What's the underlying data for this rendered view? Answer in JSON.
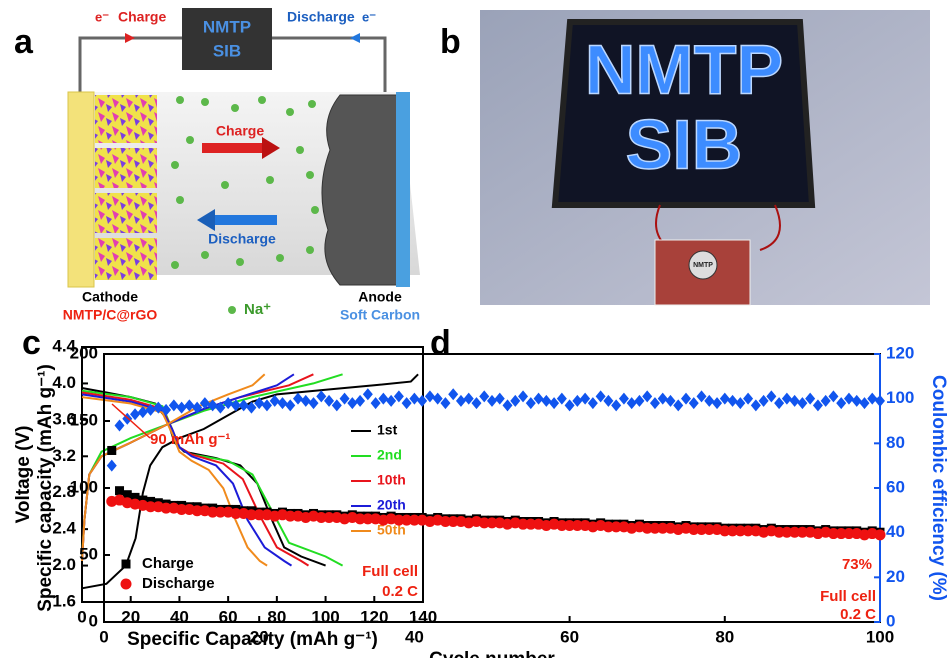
{
  "panel_a": {
    "label": "a",
    "electron_left": "e⁻",
    "charge_wire": "Charge",
    "device": [
      "NMTP",
      "SIB"
    ],
    "discharge_wire": "Discharge",
    "electron_right": "e⁻",
    "arrow_charge": "Charge",
    "arrow_discharge": "Discharge",
    "cathode": "Cathode",
    "cathode_material": "NMTP/C@rGO",
    "ion": "Na⁺",
    "anode": "Anode",
    "anode_material": "Soft Carbon"
  },
  "panel_b": {
    "label": "b",
    "sign": [
      "NMTP",
      "SIB"
    ],
    "board": "NMTP"
  },
  "chart_data": [
    {
      "type": "line",
      "label": "c",
      "xlabel": "Specific Capacity (mAh g⁻¹)",
      "ylabel": "Voltage (V)",
      "xlim": [
        0,
        140
      ],
      "xticks": [
        0,
        20,
        40,
        60,
        80,
        100,
        120,
        140
      ],
      "ylim": [
        1.6,
        4.4
      ],
      "yticks": [
        1.6,
        {
          "value": 2,
          "label": "2.0"
        },
        2.4,
        2.8,
        3.2,
        3.6,
        {
          "value": 4,
          "label": "4.0"
        },
        4.4
      ],
      "annotations": [
        "Full cell",
        "0.2 C"
      ],
      "series": [
        {
          "name": "1st",
          "color": "#000000",
          "x": [
            0,
            10,
            18,
            22,
            25,
            28,
            33,
            40,
            50,
            60,
            70,
            80,
            100,
            120,
            135,
            138,
            null,
            0,
            10,
            20,
            30,
            35,
            38,
            42,
            55,
            65,
            72,
            78,
            83,
            90,
            100
          ],
          "values": [
            1.75,
            1.8,
            2.0,
            2.3,
            2.8,
            3.1,
            3.3,
            3.4,
            3.5,
            3.65,
            3.8,
            3.88,
            3.93,
            3.98,
            4.02,
            4.1,
            null,
            3.95,
            3.9,
            3.85,
            3.78,
            3.6,
            3.35,
            3.25,
            3.18,
            3.1,
            2.9,
            2.5,
            2.2,
            2.1,
            2.0
          ]
        },
        {
          "name": "2nd",
          "color": "#22dd22",
          "x": [
            0,
            1,
            3,
            8,
            20,
            35,
            50,
            70,
            95,
            107,
            null,
            0,
            20,
            33,
            37,
            40,
            45,
            60,
            70,
            78,
            85,
            100,
            107
          ],
          "values": [
            2.1,
            2.5,
            3.0,
            3.25,
            3.4,
            3.55,
            3.7,
            3.85,
            4.0,
            4.1,
            null,
            3.92,
            3.85,
            3.75,
            3.5,
            3.3,
            3.22,
            3.15,
            3.0,
            2.6,
            2.25,
            2.1,
            2.0
          ]
        },
        {
          "name": "10th",
          "color": "#e8141c",
          "x": [
            0,
            1,
            3,
            8,
            20,
            35,
            50,
            65,
            85,
            95,
            null,
            0,
            20,
            33,
            37,
            40,
            45,
            58,
            66,
            73,
            80,
            90,
            93
          ],
          "values": [
            2.05,
            2.5,
            3.0,
            3.2,
            3.35,
            3.55,
            3.72,
            3.85,
            3.98,
            4.1,
            null,
            3.9,
            3.82,
            3.72,
            3.5,
            3.3,
            3.22,
            3.12,
            2.95,
            2.55,
            2.2,
            2.05,
            2.0
          ]
        },
        {
          "name": "20th",
          "color": "#1c1cd8",
          "x": [
            0,
            1,
            3,
            8,
            20,
            35,
            50,
            65,
            80,
            87,
            null,
            0,
            20,
            33,
            37,
            40,
            45,
            55,
            62,
            68,
            75,
            83,
            86
          ],
          "values": [
            2.05,
            2.5,
            3.0,
            3.2,
            3.35,
            3.55,
            3.72,
            3.85,
            3.98,
            4.1,
            null,
            3.88,
            3.8,
            3.7,
            3.5,
            3.3,
            3.2,
            3.1,
            2.9,
            2.5,
            2.2,
            2.05,
            2.0
          ]
        },
        {
          "name": "50th",
          "color": "#f08a1c",
          "x": [
            0,
            1,
            3,
            8,
            20,
            35,
            48,
            60,
            70,
            75,
            null,
            0,
            20,
            33,
            37,
            40,
            45,
            52,
            58,
            63,
            68,
            73,
            76
          ],
          "values": [
            2.05,
            2.5,
            3.0,
            3.2,
            3.35,
            3.55,
            3.75,
            3.88,
            3.98,
            4.1,
            null,
            3.85,
            3.78,
            3.68,
            3.45,
            3.25,
            3.15,
            3.05,
            2.85,
            2.5,
            2.2,
            2.05,
            2.0
          ]
        }
      ]
    },
    {
      "type": "scatter",
      "label": "d",
      "xlabel": "Cycle number",
      "ylabel": "Specific capacity (mAh g⁻¹)",
      "y2label": "Coulombic efficiency (%)",
      "xlim": [
        0,
        100
      ],
      "xticks": [
        0,
        20,
        40,
        60,
        80,
        100
      ],
      "ylim": [
        0,
        200
      ],
      "yticks": [
        0,
        50,
        100,
        150,
        200
      ],
      "y2lim": [
        0,
        120
      ],
      "y2ticks": [
        0,
        20,
        40,
        60,
        80,
        100,
        120
      ],
      "annotations": [
        "90 mAh g⁻¹",
        "73%",
        "Full cell",
        "0.2 C"
      ],
      "x": [
        1,
        2,
        3,
        4,
        5,
        6,
        7,
        8,
        9,
        10,
        11,
        12,
        13,
        14,
        15,
        16,
        17,
        18,
        19,
        20,
        21,
        22,
        23,
        24,
        25,
        26,
        27,
        28,
        29,
        30,
        31,
        32,
        33,
        34,
        35,
        36,
        37,
        38,
        39,
        40,
        41,
        42,
        43,
        44,
        45,
        46,
        47,
        48,
        49,
        50,
        51,
        52,
        53,
        54,
        55,
        56,
        57,
        58,
        59,
        60,
        61,
        62,
        63,
        64,
        65,
        66,
        67,
        68,
        69,
        70,
        71,
        72,
        73,
        74,
        75,
        76,
        77,
        78,
        79,
        80,
        81,
        82,
        83,
        84,
        85,
        86,
        87,
        88,
        89,
        90,
        91,
        92,
        93,
        94,
        95,
        96,
        97,
        98,
        99,
        100
      ],
      "series": [
        {
          "name": "Charge",
          "color": "#000000",
          "marker": "square",
          "values": [
            128,
            98,
            95,
            93,
            91,
            90,
            89,
            88,
            87,
            87,
            86,
            86,
            85,
            85,
            84,
            84,
            84,
            83,
            83,
            82,
            82,
            81,
            82,
            81,
            81,
            80,
            81,
            80,
            80,
            80,
            79,
            80,
            79,
            79,
            79,
            78,
            79,
            78,
            78,
            78,
            78,
            77,
            78,
            77,
            77,
            77,
            76,
            77,
            76,
            76,
            76,
            75,
            76,
            75,
            75,
            75,
            74,
            75,
            74,
            74,
            74,
            74,
            73,
            74,
            73,
            73,
            73,
            72,
            73,
            72,
            72,
            72,
            72,
            71,
            72,
            71,
            71,
            71,
            71,
            70,
            70,
            70,
            70,
            70,
            69,
            70,
            69,
            69,
            69,
            69,
            69,
            68,
            69,
            68,
            68,
            68,
            68,
            67,
            68,
            67
          ]
        },
        {
          "name": "Discharge",
          "color": "#ee1111",
          "marker": "circle",
          "values": [
            90,
            91,
            89,
            88,
            87,
            86,
            86,
            85,
            85,
            84,
            84,
            83,
            83,
            82,
            82,
            82,
            81,
            81,
            80,
            80,
            80,
            79,
            80,
            79,
            79,
            78,
            79,
            78,
            78,
            78,
            77,
            78,
            77,
            77,
            77,
            76,
            77,
            76,
            76,
            76,
            76,
            75,
            76,
            75,
            75,
            75,
            74,
            75,
            74,
            74,
            74,
            73,
            74,
            73,
            73,
            73,
            72,
            73,
            72,
            72,
            72,
            72,
            71,
            72,
            71,
            71,
            71,
            70,
            71,
            70,
            70,
            70,
            70,
            69,
            70,
            69,
            69,
            69,
            69,
            68,
            68,
            68,
            68,
            68,
            67,
            68,
            67,
            67,
            67,
            67,
            67,
            66,
            67,
            66,
            66,
            66,
            66,
            65,
            66,
            65
          ]
        },
        {
          "color": "#1155ee",
          "marker": "diamond",
          "axis": "y2",
          "values": [
            70,
            88,
            91,
            93,
            94,
            95,
            96,
            95,
            97,
            96,
            97,
            96,
            98,
            97,
            96,
            98,
            97,
            97,
            96,
            98,
            97,
            99,
            98,
            97,
            100,
            99,
            98,
            101,
            99,
            97,
            100,
            98,
            99,
            102,
            98,
            100,
            99,
            101,
            98,
            100,
            99,
            101,
            100,
            98,
            102,
            99,
            100,
            98,
            101,
            99,
            100,
            97,
            99,
            101,
            98,
            100,
            99,
            98,
            100,
            97,
            99,
            100,
            98,
            101,
            99,
            97,
            100,
            98,
            99,
            101,
            98,
            100,
            99,
            97,
            100,
            98,
            101,
            99,
            98,
            100,
            99,
            98,
            100,
            97,
            99,
            101,
            98,
            100,
            99,
            98,
            100,
            97,
            99,
            101,
            98,
            100,
            99,
            98,
            100,
            99
          ]
        }
      ]
    }
  ]
}
